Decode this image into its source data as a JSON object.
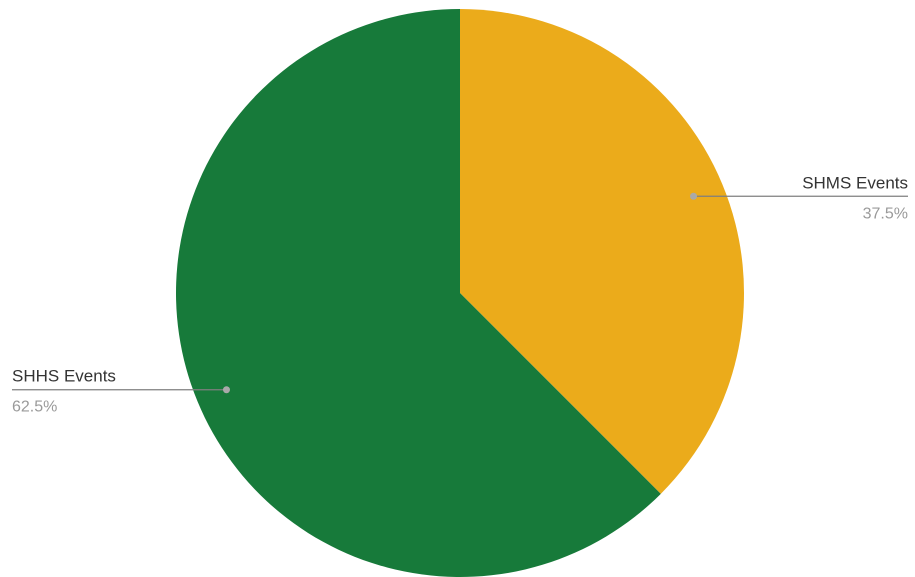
{
  "chart_data": {
    "type": "pie",
    "start_angle": "12 o'clock",
    "direction": "clockwise",
    "slices": [
      {
        "name": "SHMS Events",
        "value": 37.5,
        "label": "37.5%",
        "color": "#EBAB1B",
        "label_side": "right"
      },
      {
        "name": "SHHS Events",
        "value": 62.5,
        "label": "62.5%",
        "color": "#177A3A",
        "label_side": "left"
      }
    ],
    "legend": "none"
  }
}
